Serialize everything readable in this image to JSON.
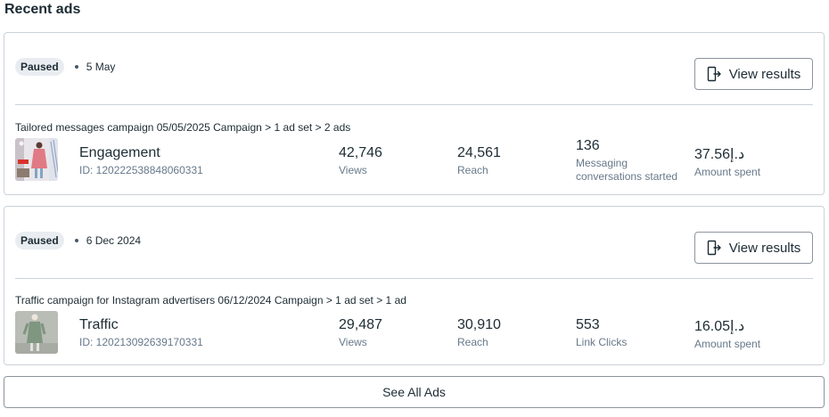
{
  "section_title": "Recent ads",
  "view_results_label": "View results",
  "see_all_label": "See All Ads",
  "ads": [
    {
      "status": "Paused",
      "date": "5 May",
      "breadcrumb": "Tailored messages campaign 05/05/2025 Campaign > 1 ad set > 2 ads",
      "name": "Engagement",
      "id": "ID: 120222538848060331",
      "metrics": [
        {
          "value": "42,746",
          "label": "Views"
        },
        {
          "value": "24,561",
          "label": "Reach"
        },
        {
          "value": "136",
          "label": "Messaging conversations started"
        },
        {
          "value": "37.56د.إ",
          "label": "Amount spent"
        }
      ]
    },
    {
      "status": "Paused",
      "date": "6 Dec 2024",
      "breadcrumb": "Traffic campaign for Instagram advertisers 06/12/2024 Campaign > 1 ad set > 1 ad",
      "name": "Traffic",
      "id": "ID: 120213092639170331",
      "metrics": [
        {
          "value": "29,487",
          "label": "Views"
        },
        {
          "value": "30,910",
          "label": "Reach"
        },
        {
          "value": "553",
          "label": "Link Clicks"
        },
        {
          "value": "16.05د.إ",
          "label": "Amount spent"
        }
      ]
    }
  ]
}
